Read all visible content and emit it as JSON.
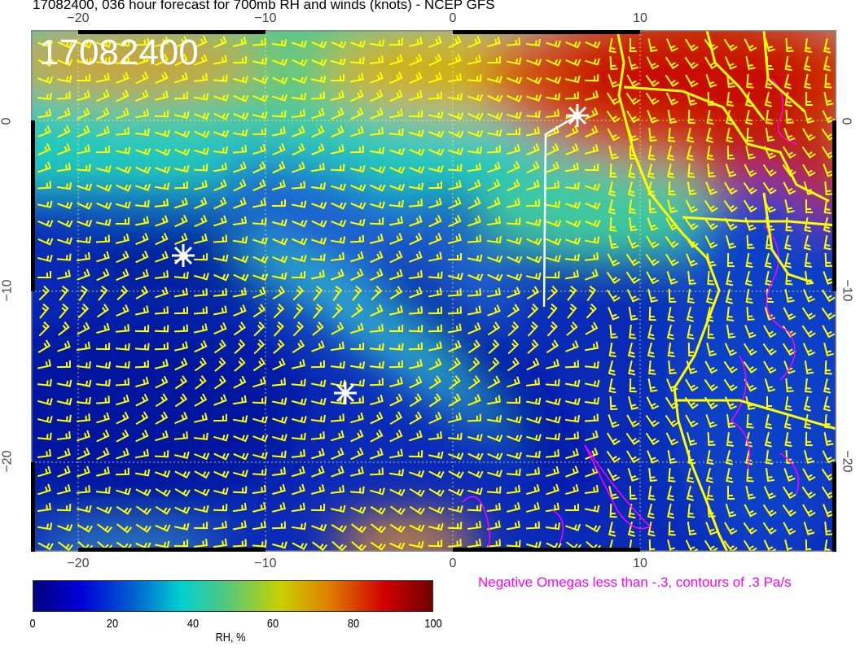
{
  "title": "17082400, 036 hour forecast for 700mb RH and winds (knots) - NCEP GFS",
  "map": {
    "timestamp": "17082400",
    "lon_ticks": [
      "−20",
      "−10",
      "0",
      "10"
    ],
    "lat_ticks": [
      "0",
      "−10",
      "−20"
    ],
    "markers": [
      "star",
      "star",
      "star"
    ],
    "colors": {
      "coastline": "#ffff00",
      "wind_barbs": "#ffff00",
      "omega_contours": "#ff00ff",
      "markers": "#ffffff"
    }
  },
  "colorbar": {
    "ticks": [
      "0",
      "20",
      "40",
      "60",
      "80",
      "100"
    ],
    "label": "RH, %",
    "range": [
      0,
      100
    ]
  },
  "omega_note": "Negative Omegas less than -.3, contours of .3 Pa/s"
}
